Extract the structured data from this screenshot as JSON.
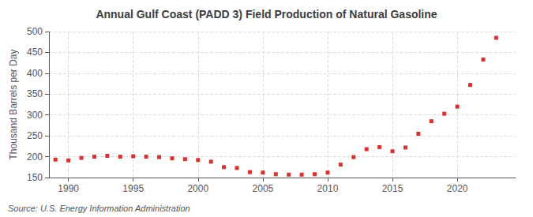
{
  "chart_data": {
    "type": "scatter",
    "title": "Annual Gulf Coast (PADD 3) Field Production of Natural Gasoline",
    "ylabel": "Thousand Barrels per Day",
    "annotation": "Source: U.S. Energy Information Administration",
    "x": [
      1989,
      1990,
      1991,
      1992,
      1993,
      1994,
      1995,
      1996,
      1997,
      1998,
      1999,
      2000,
      2001,
      2002,
      2003,
      2004,
      2005,
      2006,
      2007,
      2008,
      2009,
      2010,
      2011,
      2012,
      2013,
      2014,
      2015,
      2016,
      2017,
      2018,
      2019,
      2020,
      2021,
      2022,
      2023
    ],
    "values": [
      193,
      191,
      197,
      200,
      202,
      200,
      201,
      200,
      199,
      196,
      194,
      192,
      188,
      175,
      173,
      163,
      162,
      158,
      157,
      157,
      158,
      162,
      181,
      199,
      218,
      223,
      213,
      222,
      255,
      285,
      303,
      320,
      372,
      433,
      485
    ],
    "color": "#cc0000",
    "marker": "square",
    "xlim": [
      1988.5,
      2024.5
    ],
    "ylim": [
      150,
      500
    ],
    "xticks": [
      1990,
      1995,
      2000,
      2005,
      2010,
      2015,
      2020
    ],
    "yticks": [
      150,
      200,
      250,
      300,
      350,
      400,
      450,
      500
    ],
    "grid": true
  }
}
